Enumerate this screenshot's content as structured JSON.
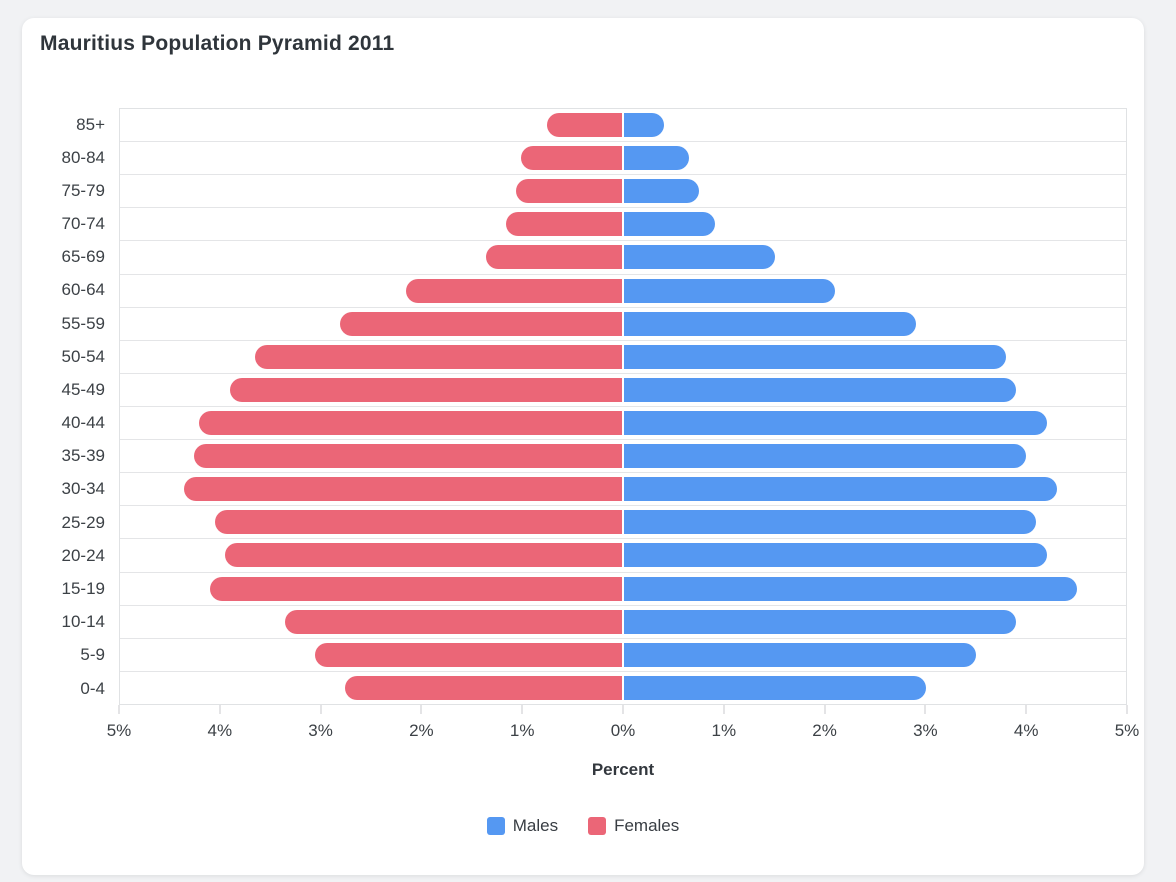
{
  "card": {
    "title": "Mauritius Population Pyramid 2011"
  },
  "chart_data": {
    "type": "bar",
    "subtype": "population-pyramid",
    "title": "Mauritius Population Pyramid 2011",
    "xlabel": "Percent",
    "categories_top_to_bottom": [
      "85+",
      "80-84",
      "75-79",
      "70-74",
      "65-69",
      "60-64",
      "55-59",
      "50-54",
      "45-49",
      "40-44",
      "35-39",
      "30-34",
      "25-29",
      "20-24",
      "15-19",
      "10-14",
      "5-9",
      "0-4"
    ],
    "series": [
      {
        "name": "Males",
        "side": "right",
        "color": "#5598F2",
        "unit": "%",
        "values": [
          0.4,
          0.65,
          0.75,
          0.9,
          1.5,
          2.1,
          2.9,
          3.8,
          3.9,
          4.2,
          4.0,
          4.3,
          4.1,
          4.2,
          4.5,
          3.9,
          3.5,
          3.0
        ]
      },
      {
        "name": "Females",
        "side": "left",
        "color": "#EB6677",
        "unit": "%",
        "values": [
          0.75,
          1.0,
          1.05,
          1.15,
          1.35,
          2.15,
          2.8,
          3.65,
          3.9,
          4.2,
          4.25,
          4.35,
          4.05,
          3.95,
          4.1,
          3.35,
          3.05,
          2.75
        ]
      }
    ],
    "x_axis": {
      "tick_labels": [
        "5%",
        "4%",
        "3%",
        "2%",
        "1%",
        "0%",
        "1%",
        "2%",
        "3%",
        "4%",
        "5%"
      ],
      "max_each_side": 5,
      "tick_step": 1
    },
    "grid": "horizontal-row-separators",
    "legend_position": "bottom-center"
  },
  "legend": {
    "items": [
      {
        "label": "Males",
        "color": "#5598F2"
      },
      {
        "label": "Females",
        "color": "#EB6677"
      }
    ]
  },
  "colors": {
    "page_background": "#f1f2f4",
    "card_background": "#ffffff",
    "male": "#5598F2",
    "female": "#EB6677",
    "text": "#3c4146",
    "grid": "#e4e5e7"
  }
}
